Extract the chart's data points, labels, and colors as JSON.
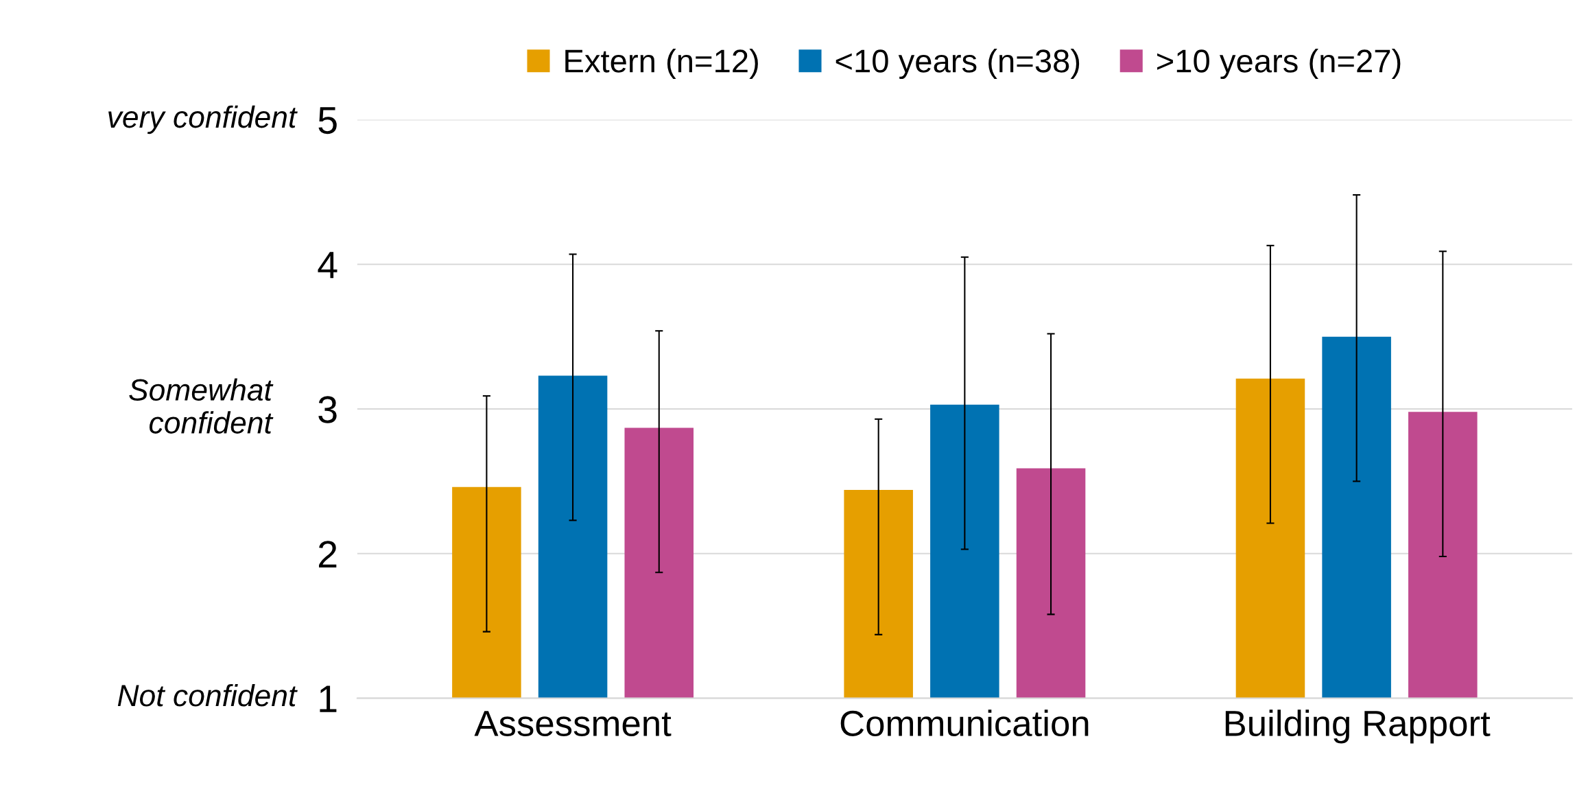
{
  "chart_data": {
    "type": "bar",
    "categories": [
      "Assessment",
      "Communication",
      "Building Rapport"
    ],
    "series": [
      {
        "name": "Extern (n=12)",
        "color": "#e69f00",
        "values": [
          2.46,
          2.44,
          3.21
        ],
        "errors": [
          [
            1.46,
            3.09
          ],
          [
            1.44,
            2.93
          ],
          [
            2.21,
            4.13
          ]
        ]
      },
      {
        "name": "<10 years (n=38)",
        "color": "#0072b2",
        "values": [
          3.23,
          3.03,
          3.5
        ],
        "errors": [
          [
            2.23,
            4.07
          ],
          [
            2.03,
            4.05
          ],
          [
            2.5,
            4.48
          ]
        ]
      },
      {
        "name": ">10 years (n=27)",
        "color": "#c04a8f",
        "values": [
          2.87,
          2.59,
          2.98
        ],
        "errors": [
          [
            1.87,
            3.54
          ],
          [
            1.58,
            3.52
          ],
          [
            1.98,
            4.09
          ]
        ]
      }
    ],
    "ylim": [
      1,
      5
    ],
    "yticks": [
      1,
      2,
      3,
      4,
      5
    ],
    "grid": "y",
    "legend": "top",
    "annotations": [
      "very confident",
      "Somewhat\nconfident",
      "Not confident"
    ]
  }
}
